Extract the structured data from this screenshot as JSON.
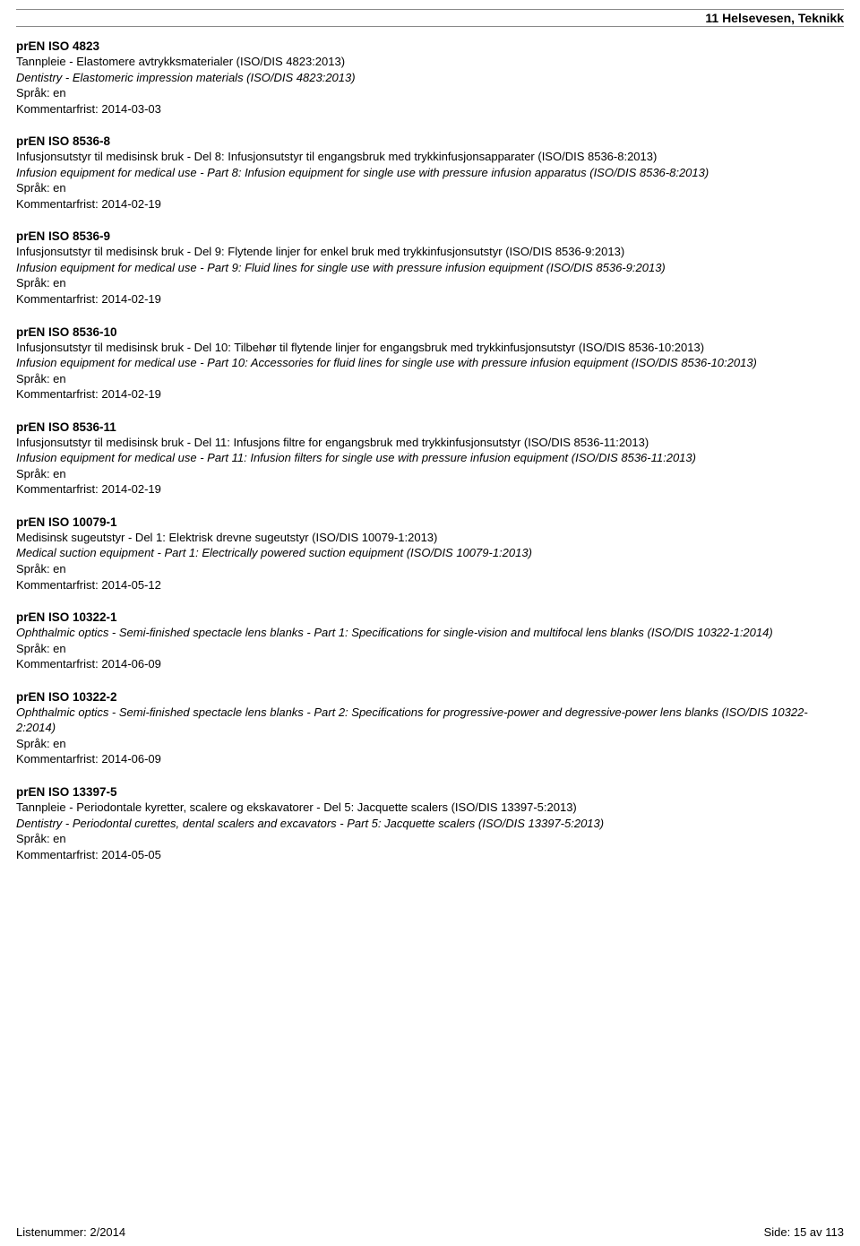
{
  "header": "11  Helsevesen, Teknikk",
  "lang_prefix": "Språk: ",
  "deadline_prefix": "Kommentarfrist: ",
  "entries": [
    {
      "code": "prEN ISO 4823",
      "title_no": "Tannpleie - Elastomere avtrykksmaterialer (ISO/DIS 4823:2013)",
      "title_en": "Dentistry - Elastomeric impression materials (ISO/DIS 4823:2013)",
      "lang": "en",
      "deadline": "2014-03-03"
    },
    {
      "code": "prEN ISO 8536-8",
      "title_no": "Infusjonsutstyr til medisinsk bruk - Del 8: Infusjonsutstyr til engangsbruk med trykkinfusjonsapparater (ISO/DIS 8536-8:2013)",
      "title_en": "Infusion equipment for medical use - Part 8: Infusion equipment for single use with pressure infusion apparatus (ISO/DIS 8536-8:2013)",
      "lang": "en",
      "deadline": "2014-02-19"
    },
    {
      "code": "prEN ISO 8536-9",
      "title_no": "Infusjonsutstyr til medisinsk bruk - Del 9: Flytende linjer for enkel bruk med trykkinfusjonsutstyr (ISO/DIS 8536-9:2013)",
      "title_en": "Infusion equipment for medical use - Part 9: Fluid lines for single use with pressure infusion equipment (ISO/DIS 8536-9:2013)",
      "lang": "en",
      "deadline": "2014-02-19"
    },
    {
      "code": "prEN ISO 8536-10",
      "title_no": "Infusjonsutstyr til medisinsk bruk - Del 10: Tilbehør til flytende linjer for engangsbruk med trykkinfusjonsutstyr (ISO/DIS 8536-10:2013)",
      "title_en": "Infusion equipment for medical use - Part 10: Accessories for fluid lines for single use with pressure infusion equipment (ISO/DIS 8536-10:2013)",
      "lang": "en",
      "deadline": "2014-02-19"
    },
    {
      "code": "prEN ISO 8536-11",
      "title_no": "Infusjonsutstyr til medisinsk bruk - Del 11: Infusjons filtre for engangsbruk med trykkinfusjonsutstyr (ISO/DIS 8536-11:2013)",
      "title_en": "Infusion equipment for medical use - Part 11: Infusion filters for single use with pressure infusion equipment (ISO/DIS 8536-11:2013)",
      "lang": "en",
      "deadline": "2014-02-19"
    },
    {
      "code": "prEN ISO 10079-1",
      "title_no": "Medisinsk sugeutstyr - Del 1: Elektrisk drevne sugeutstyr (ISO/DIS 10079-1:2013)",
      "title_en": "Medical suction equipment - Part 1: Electrically powered suction equipment (ISO/DIS 10079-1:2013)",
      "lang": "en",
      "deadline": "2014-05-12"
    },
    {
      "code": "prEN ISO 10322-1",
      "title_no": "",
      "title_en": "Ophthalmic optics - Semi-finished spectacle lens blanks - Part 1: Specifications for single-vision and multifocal lens blanks (ISO/DIS 10322-1:2014)",
      "lang": "en",
      "deadline": "2014-06-09"
    },
    {
      "code": "prEN ISO 10322-2",
      "title_no": "",
      "title_en": "Ophthalmic optics - Semi-finished spectacle lens blanks - Part 2: Specifications for progressive-power and degressive-power lens blanks (ISO/DIS 10322-2:2014)",
      "lang": "en",
      "deadline": "2014-06-09"
    },
    {
      "code": "prEN ISO 13397-5",
      "title_no": "Tannpleie - Periodontale kyretter, scalere og ekskavatorer - Del 5: Jacquette scalers (ISO/DIS 13397-5:2013)",
      "title_en": "Dentistry - Periodontal curettes, dental scalers and excavators - Part 5: Jacquette scalers (ISO/DIS 13397-5:2013)",
      "lang": "en",
      "deadline": "2014-05-05"
    }
  ],
  "footer": {
    "left": "Listenummer: 2/2014",
    "right": "Side: 15 av 113"
  }
}
